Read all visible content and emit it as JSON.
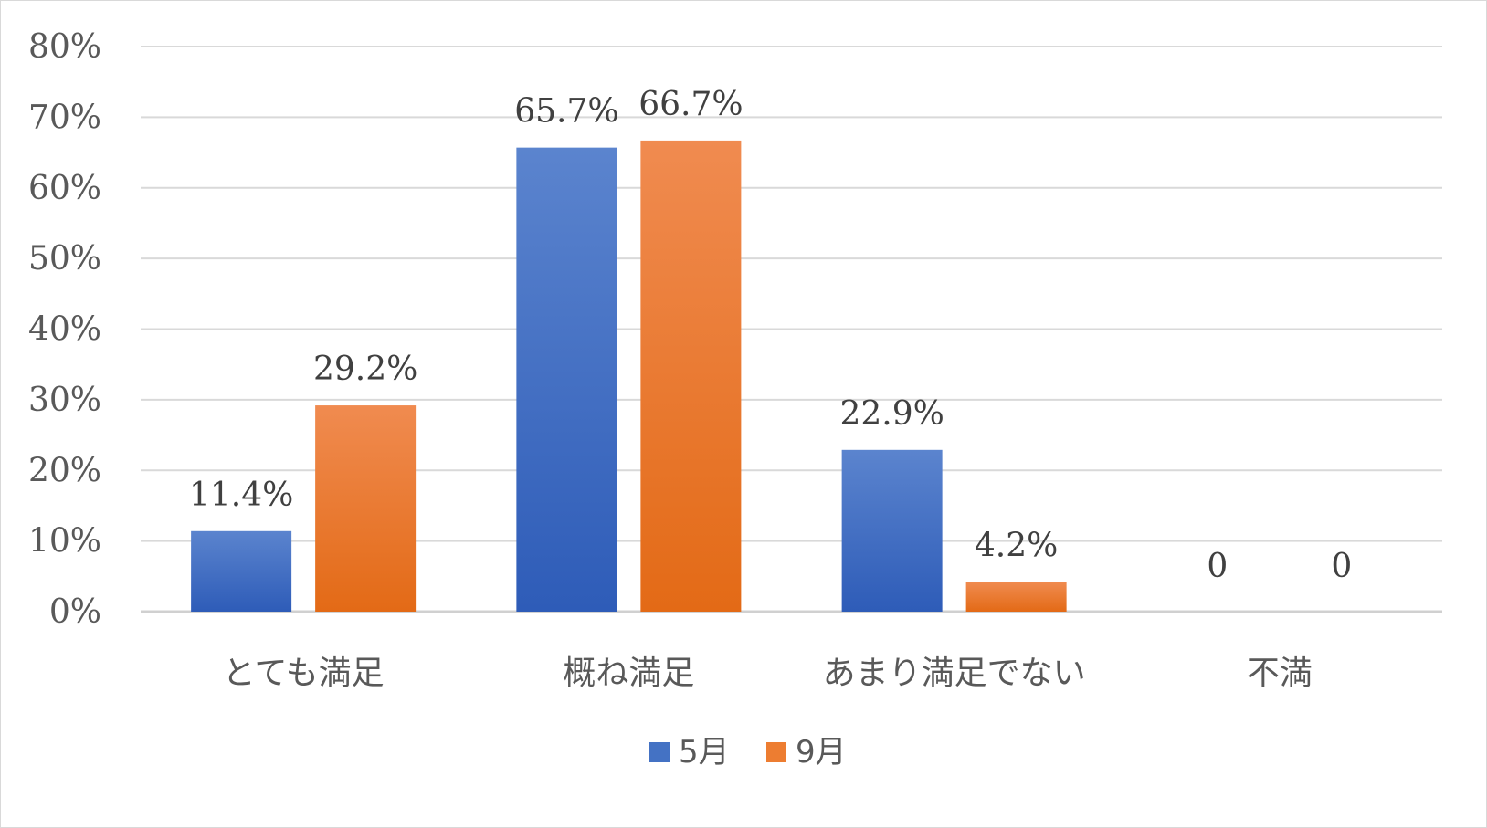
{
  "chart_data": {
    "type": "bar",
    "title": "",
    "xlabel": "",
    "ylabel": "",
    "categories": [
      "とても満足",
      "概ね満足",
      "あまり満足でない",
      "不満"
    ],
    "ylim": [
      0,
      0.8
    ],
    "yticks": [
      0,
      0.1,
      0.2,
      0.3,
      0.4,
      0.5,
      0.6,
      0.7,
      0.8
    ],
    "ytick_labels": [
      "0%",
      "10%",
      "20%",
      "30%",
      "40%",
      "50%",
      "60%",
      "70%",
      "80%"
    ],
    "grid": true,
    "legend_position": "bottom",
    "series": [
      {
        "name": "5月",
        "color": "#4472C4",
        "values": [
          0.114,
          0.657,
          0.229,
          0
        ],
        "labels": [
          "11.4%",
          "65.7%",
          "22.9%",
          "0"
        ]
      },
      {
        "name": "9月",
        "color": "#ED7D31",
        "values": [
          0.292,
          0.667,
          0.042,
          0
        ],
        "labels": [
          "29.2%",
          "66.7%",
          "4.2%",
          "0"
        ]
      }
    ]
  }
}
